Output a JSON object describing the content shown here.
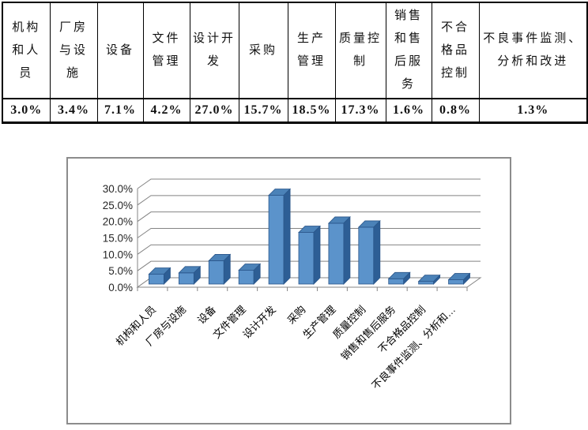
{
  "table": {
    "columns": [
      {
        "label": "机构和人员",
        "value": "3.0%"
      },
      {
        "label": "厂房与设施",
        "value": "3.4%"
      },
      {
        "label": "设备",
        "value": "7.1%"
      },
      {
        "label": "文件管理",
        "value": "4.2%"
      },
      {
        "label": "设计开发",
        "value": "27.0%"
      },
      {
        "label": "采购",
        "value": "15.7%"
      },
      {
        "label": "生产管理",
        "value": "18.5%"
      },
      {
        "label": "质量控制",
        "value": "17.3%"
      },
      {
        "label": "销售和售后服务",
        "value": "1.6%"
      },
      {
        "label": "不合格品控制",
        "value": "0.8%"
      },
      {
        "label": "不良事件监测、分析和改进",
        "value": "1.3%"
      }
    ]
  },
  "chart_data": {
    "type": "bar",
    "style": "3d-column",
    "title": "",
    "xlabel": "",
    "ylabel": "",
    "categories": [
      "机构和人员",
      "厂房与设施",
      "设备",
      "文件管理",
      "设计开发",
      "采购",
      "生产管理",
      "质量控制",
      "销售和售后服务",
      "不合格品控制",
      "不良事件监测、分析和…"
    ],
    "values": [
      3.0,
      3.4,
      7.1,
      4.2,
      27.0,
      15.7,
      18.5,
      17.3,
      1.6,
      0.8,
      1.3
    ],
    "ylim": [
      0,
      30
    ],
    "ytick_step": 5,
    "ytick_labels": [
      "0.0%",
      "5.0%",
      "10.0%",
      "15.0%",
      "20.0%",
      "25.0%",
      "30.0%"
    ],
    "grid": true,
    "legend": false,
    "colors": {
      "bar_front": "#5B93CB",
      "bar_top": "#4B82B8",
      "bar_side": "#2D5E95",
      "bar_stroke": "#2A568A",
      "gridline": "#848484",
      "axis": "#848484",
      "floor_fill": "#ffffff"
    }
  }
}
